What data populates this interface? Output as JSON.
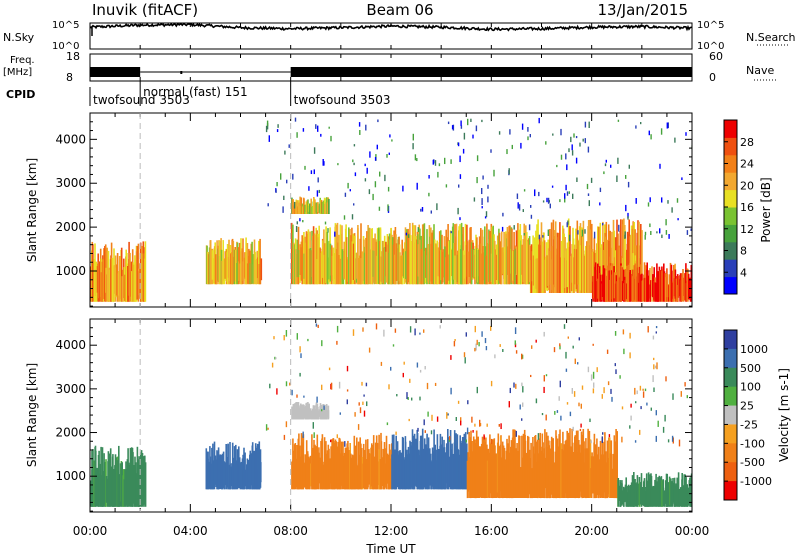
{
  "header": {
    "station": "Inuvik (fitACF)",
    "beam": "Beam 06",
    "date": "13/Jan/2015"
  },
  "side_labels": {
    "nsky": "N.Sky",
    "nsearch": "N.Search",
    "freq": "Freq.",
    "freq_unit": "[MHz]",
    "nave": "Nave",
    "cpid": "CPID"
  },
  "colors": {
    "noise_line": "#000000",
    "power_scale": [
      "#0000ff",
      "#2a3fb8",
      "#3c7a5a",
      "#47a23c",
      "#7ac332",
      "#e8e024",
      "#f2a830",
      "#f28018",
      "#ef5010",
      "#ee0000"
    ],
    "velocity_scale": [
      "#2f3fa0",
      "#3c6fb0",
      "#3a8a5a",
      "#50b040",
      "#c0c0c0",
      "#f5a020",
      "#f08018",
      "#ee6010",
      "#ee0000"
    ]
  },
  "chart_data": [
    {
      "type": "line",
      "name": "noise-panel",
      "ylabels_left": [
        "10^5",
        "10^0"
      ],
      "ylabels_right": [
        "10^5",
        "10^0"
      ],
      "x": [
        0,
        2,
        4,
        6,
        8,
        10,
        12,
        14,
        16,
        18,
        20,
        22,
        24
      ],
      "series": [
        {
          "name": "N.Sky",
          "values": [
            4.2,
            4.6,
            4.7,
            4.1,
            3.9,
            4.1,
            4.4,
            4.2,
            3.8,
            3.9,
            4.2,
            4.3,
            4.0
          ]
        }
      ],
      "ylim": [
        0,
        5
      ]
    },
    {
      "type": "line",
      "name": "frequency-panel",
      "ylabels_left": [
        "18",
        "8"
      ],
      "ylabels_right": [
        "60",
        "0"
      ],
      "series": [
        {
          "name": "Freq.",
          "x": [
            0,
            24
          ],
          "values": [
            11,
            11
          ]
        }
      ],
      "ylim": [
        8,
        18
      ]
    },
    {
      "type": "table",
      "name": "cpid-bar",
      "segments": [
        {
          "label": "twofsound 3503",
          "start": 0,
          "end": 2.0
        },
        {
          "label": "normal (fast) 151",
          "start": 2.0,
          "end": 8.0
        },
        {
          "label": "twofsound 3503",
          "start": 8.0,
          "end": 24
        }
      ]
    },
    {
      "type": "heatmap",
      "name": "power-panel",
      "ylabel": "Slant Range [km]",
      "yticks": [
        1000,
        2000,
        3000,
        4000
      ],
      "ylim": [
        180,
        4600
      ],
      "xlim": [
        0,
        24
      ],
      "colorbar": {
        "label": "Power [dB]",
        "ticks": [
          4,
          8,
          12,
          16,
          20,
          24,
          28
        ],
        "range": [
          0,
          32
        ]
      },
      "regions": [
        {
          "t0": 0.0,
          "t1": 2.2,
          "r0": 300,
          "r1": 1700,
          "level": 22
        },
        {
          "t0": 4.6,
          "t1": 6.8,
          "r0": 700,
          "r1": 1800,
          "level": 20
        },
        {
          "t0": 8.0,
          "t1": 17.5,
          "r0": 700,
          "r1": 2100,
          "level": 20
        },
        {
          "t0": 17.5,
          "t1": 22.0,
          "r0": 500,
          "r1": 2200,
          "level": 22
        },
        {
          "t0": 20.0,
          "t1": 24.0,
          "r0": 300,
          "r1": 1200,
          "level": 28
        },
        {
          "t0": 8.0,
          "t1": 9.5,
          "r0": 2300,
          "r1": 2700,
          "level": 18
        }
      ]
    },
    {
      "type": "heatmap",
      "name": "velocity-panel",
      "ylabel": "Slant Range [km]",
      "xlabel": "Time UT",
      "yticks": [
        1000,
        2000,
        3000,
        4000
      ],
      "ylim": [
        180,
        4600
      ],
      "xlim": [
        0,
        24
      ],
      "xticks": [
        "00:00",
        "04:00",
        "08:00",
        "12:00",
        "16:00",
        "20:00",
        "00:00"
      ],
      "colorbar": {
        "label": "Velocity [m s-1]",
        "ticks": [
          1000,
          500,
          100,
          25,
          -25,
          -100,
          -500,
          -1000
        ]
      },
      "regions": [
        {
          "t0": 0.0,
          "t1": 2.2,
          "r0": 300,
          "r1": 1700,
          "value": 100
        },
        {
          "t0": 4.6,
          "t1": 6.8,
          "r0": 700,
          "r1": 1800,
          "value": 500
        },
        {
          "t0": 8.0,
          "t1": 12.0,
          "r0": 700,
          "r1": 2000,
          "value": -100
        },
        {
          "t0": 12.0,
          "t1": 15.0,
          "r0": 700,
          "r1": 2100,
          "value": 500
        },
        {
          "t0": 15.0,
          "t1": 21.0,
          "r0": 500,
          "r1": 2100,
          "value": -100
        },
        {
          "t0": 21.0,
          "t1": 24.0,
          "r0": 300,
          "r1": 1100,
          "value": 100
        },
        {
          "t0": 8.0,
          "t1": 9.5,
          "r0": 2300,
          "r1": 2700,
          "value": 0
        }
      ]
    }
  ]
}
